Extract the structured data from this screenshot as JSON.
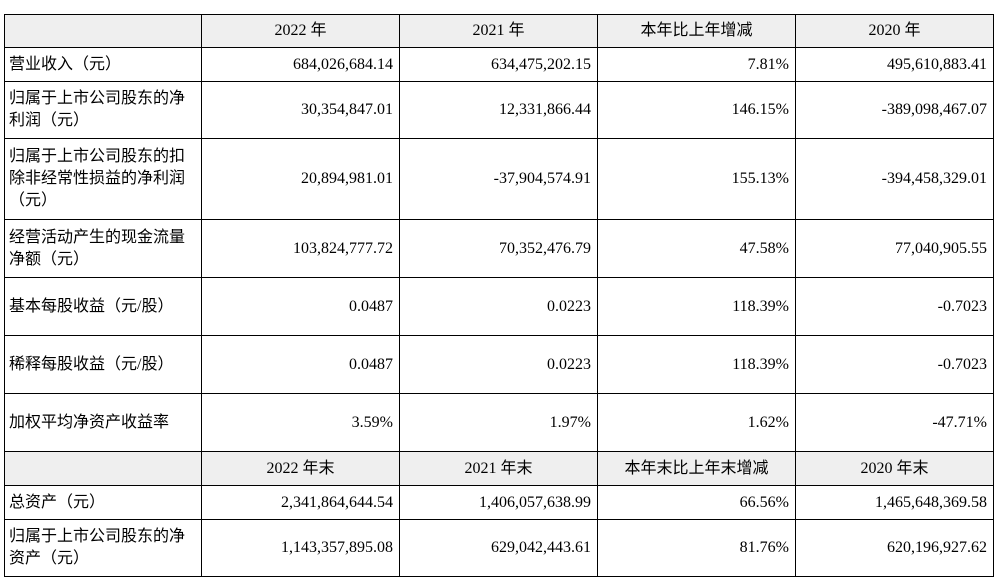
{
  "header1": [
    "2022 年",
    "2021 年",
    "本年比上年增减",
    "2020 年"
  ],
  "header2": [
    "2022 年末",
    "2021 年末",
    "本年末比上年末增减",
    "2020 年末"
  ],
  "rows1": [
    {
      "label": "营业收入（元）",
      "values": [
        "684,026,684.14",
        "634,475,202.15",
        "7.81%",
        "495,610,883.41"
      ]
    },
    {
      "label": "归属于上市公司股东的净利润（元）",
      "values": [
        "30,354,847.01",
        "12,331,866.44",
        "146.15%",
        "-389,098,467.07"
      ]
    },
    {
      "label": "归属于上市公司股东的扣除非经常性损益的净利润（元）",
      "values": [
        "20,894,981.01",
        "-37,904,574.91",
        "155.13%",
        "-394,458,329.01"
      ]
    },
    {
      "label": "经营活动产生的现金流量净额（元）",
      "values": [
        "103,824,777.72",
        "70,352,476.79",
        "47.58%",
        "77,040,905.55"
      ]
    },
    {
      "label": "基本每股收益（元/股）",
      "values": [
        "0.0487",
        "0.0223",
        "118.39%",
        "-0.7023"
      ]
    },
    {
      "label": "稀释每股收益（元/股）",
      "values": [
        "0.0487",
        "0.0223",
        "118.39%",
        "-0.7023"
      ]
    },
    {
      "label": "加权平均净资产收益率",
      "values": [
        "3.59%",
        "1.97%",
        "1.62%",
        "-47.71%"
      ]
    }
  ],
  "rows2": [
    {
      "label": "总资产（元）",
      "values": [
        "2,341,864,644.54",
        "1,406,057,638.99",
        "66.56%",
        "1,465,648,369.58"
      ]
    },
    {
      "label": "归属于上市公司股东的净资产（元）",
      "values": [
        "1,143,357,895.08",
        "629,042,443.61",
        "81.76%",
        "620,196,927.62"
      ]
    }
  ]
}
